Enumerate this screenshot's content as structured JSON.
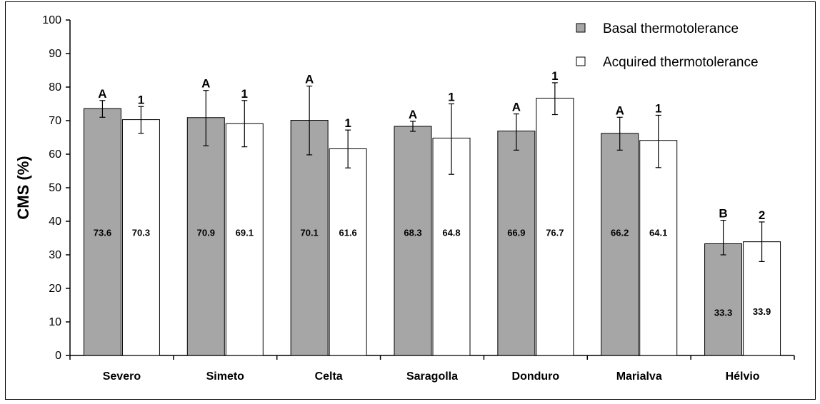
{
  "chart_data": {
    "type": "bar",
    "title": "",
    "xlabel": "",
    "ylabel": "CMS (%)",
    "ylim": [
      0,
      100
    ],
    "yticks": [
      0,
      10,
      20,
      30,
      40,
      50,
      60,
      70,
      80,
      90,
      100
    ],
    "grid": false,
    "legend_position": "top-right",
    "categories": [
      "Severo",
      "Simeto",
      "Celta",
      "Saragolla",
      "Donduro",
      "Marialva",
      "Hélvio"
    ],
    "series": [
      {
        "name": "Basal thermotolerance",
        "color": "#a6a6a6",
        "values": [
          73.6,
          70.9,
          70.1,
          68.3,
          66.9,
          66.2,
          33.3
        ],
        "value_labels": [
          "73.6",
          "70.9",
          "70.1",
          "68.3",
          "66.9",
          "66.2",
          "33.3"
        ],
        "err_low": [
          71.0,
          62.5,
          59.8,
          66.8,
          61.2,
          61.2,
          30.0
        ],
        "err_high": [
          76.0,
          79.0,
          80.3,
          69.8,
          72.0,
          71.0,
          40.3
        ],
        "sig_labels": [
          "A",
          "A",
          "A",
          "A",
          "A",
          "A",
          "B"
        ]
      },
      {
        "name": "Acquired thermotolerance",
        "color": "#ffffff",
        "values": [
          70.3,
          69.1,
          61.6,
          64.8,
          76.7,
          64.1,
          33.9
        ],
        "value_labels": [
          "70.3",
          "69.1",
          "61.6",
          "64.8",
          "76.7",
          "64.1",
          "33.9"
        ],
        "err_low": [
          66.2,
          62.2,
          55.9,
          54.0,
          71.8,
          56.0,
          28.0
        ],
        "err_high": [
          74.2,
          76.0,
          67.2,
          75.0,
          81.3,
          71.6,
          39.8
        ],
        "sig_labels": [
          "1",
          "1",
          "1",
          "1",
          "1",
          "1",
          "2"
        ]
      }
    ]
  }
}
